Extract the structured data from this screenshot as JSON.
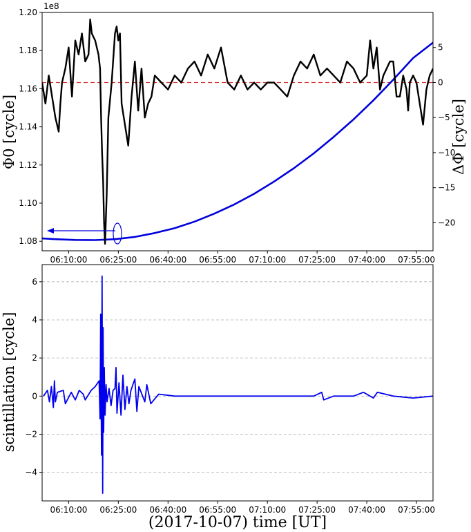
{
  "chart_data": [
    {
      "type": "line",
      "x_unit": "UT",
      "x_tick_labels": [
        "06:10:00",
        "06:25:00",
        "06:40:00",
        "06:55:00",
        "07:10:00",
        "07:25:00",
        "07:40:00",
        "07:55:00"
      ],
      "x_tick_hours": [
        6.1667,
        6.4167,
        6.6667,
        6.9167,
        7.1667,
        7.4167,
        7.6667,
        7.9167
      ],
      "xlim_hours": [
        6.0333,
        8.0
      ],
      "left_axis": {
        "label": "Φ0 [cycle]",
        "multiplier": "1e8",
        "ylim": [
          1.075,
          1.2
        ],
        "tick_values": [
          1.08,
          1.1,
          1.12,
          1.14,
          1.16,
          1.18,
          1.2
        ],
        "tick_labels": [
          "1.08",
          "1.10",
          "1.12",
          "1.14",
          "1.16",
          "1.18",
          "1.20"
        ]
      },
      "right_axis": {
        "label": "ΔΦ [cycle]",
        "ylim": [
          -24,
          10
        ],
        "tick_values": [
          -20,
          -15,
          -10,
          -5,
          0,
          5
        ],
        "tick_labels": [
          "−20",
          "−15",
          "−10",
          "−5",
          "0",
          "5"
        ]
      },
      "series": [
        {
          "axis": "left",
          "color": "#0000dd",
          "x": [
            6.0333,
            6.1,
            6.2,
            6.3,
            6.4,
            6.5,
            6.6,
            6.7,
            6.8,
            6.9,
            7.0,
            7.1,
            7.2,
            7.3,
            7.4,
            7.5,
            7.6,
            7.7,
            7.8,
            7.9,
            8.0
          ],
          "y": [
            1.0815,
            1.0811,
            1.0807,
            1.0806,
            1.0811,
            1.0823,
            1.0843,
            1.0869,
            1.0903,
            1.0945,
            1.0993,
            1.1049,
            1.1113,
            1.1183,
            1.1261,
            1.1347,
            1.1439,
            1.1539,
            1.1647,
            1.1761,
            1.1842
          ]
        },
        {
          "axis": "right",
          "color": "#000000",
          "x": [
            6.0333,
            6.05,
            6.0667,
            6.0833,
            6.1,
            6.1167,
            6.125,
            6.1333,
            6.15,
            6.1667,
            6.1833,
            6.2,
            6.2167,
            6.2333,
            6.25,
            6.2667,
            6.275,
            6.2833,
            6.3,
            6.3167,
            6.325,
            6.33,
            6.335,
            6.34,
            6.345,
            6.35,
            6.3583,
            6.3667,
            6.3833,
            6.4,
            6.4083,
            6.4167,
            6.425,
            6.4333,
            6.45,
            6.4667,
            6.4833,
            6.5,
            6.5167,
            6.5333,
            6.55,
            6.5667,
            6.5833,
            6.6,
            6.6333,
            6.6667,
            6.7,
            6.7333,
            6.7667,
            6.8,
            6.8333,
            6.8667,
            6.9,
            6.9333,
            6.9667,
            7.0,
            7.0333,
            7.0667,
            7.1,
            7.1333,
            7.1667,
            7.2,
            7.2333,
            7.2667,
            7.3,
            7.3333,
            7.3667,
            7.4,
            7.4333,
            7.4667,
            7.5,
            7.5333,
            7.5667,
            7.6,
            7.6333,
            7.6667,
            7.6833,
            7.7,
            7.7167,
            7.7333,
            7.75,
            7.7667,
            7.7833,
            7.8,
            7.8167,
            7.8333,
            7.85,
            7.8667,
            7.875,
            7.8833,
            7.9,
            7.9167,
            7.9333,
            7.95,
            7.9667,
            7.9833,
            8.0
          ],
          "y": [
            0,
            -3,
            1,
            -2,
            -5,
            -7,
            -3,
            0,
            2,
            5,
            -2,
            6,
            4,
            7,
            3,
            4,
            9,
            7,
            6,
            4,
            2,
            -5,
            -10,
            -14,
            -20,
            -23,
            -16,
            -5,
            0,
            7,
            8,
            6,
            7,
            -3,
            -6,
            -9,
            -2,
            3,
            -4,
            2,
            -5,
            -3,
            -2,
            1,
            0,
            -1,
            1,
            0,
            2,
            3,
            1,
            4,
            2,
            5,
            0,
            -1,
            1,
            -1,
            0,
            -1,
            0,
            0,
            -1,
            -2,
            1,
            3,
            2,
            4,
            1,
            2,
            1,
            0,
            3,
            2,
            0,
            1,
            6,
            2,
            5,
            -1,
            1,
            2,
            3,
            3,
            -2,
            -2,
            1,
            -1,
            -4,
            0,
            1,
            0,
            -3,
            -6,
            -1,
            1,
            2
          ]
        }
      ],
      "zero_line_color": "#d62728"
    },
    {
      "type": "line",
      "x_unit": "UT",
      "x_tick_labels": [
        "06:10:00",
        "06:25:00",
        "06:40:00",
        "06:55:00",
        "07:10:00",
        "07:25:00",
        "07:40:00",
        "07:55:00"
      ],
      "x_tick_hours": [
        6.1667,
        6.4167,
        6.6667,
        6.9167,
        7.1667,
        7.4167,
        7.6667,
        7.9167
      ],
      "xlim_hours": [
        6.0333,
        8.0
      ],
      "xlabel": "(2017-10-07) time [UT]",
      "ylabel": "scintillation [cycle]",
      "ylim": [
        -5.5,
        6.9
      ],
      "tick_values": [
        -4,
        -2,
        0,
        2,
        4,
        6
      ],
      "tick_labels": [
        "−4",
        "−2",
        "0",
        "2",
        "4",
        "6"
      ],
      "grid": "horizontal dashed",
      "series": [
        {
          "color": "#0000ee",
          "x": [
            6.04,
            6.06,
            6.07,
            6.08,
            6.09,
            6.095,
            6.1,
            6.11,
            6.14,
            6.15,
            6.18,
            6.2,
            6.22,
            6.24,
            6.25,
            6.28,
            6.3,
            6.32,
            6.325,
            6.328,
            6.332,
            6.335,
            6.338,
            6.34,
            6.343,
            6.346,
            6.35,
            6.355,
            6.36,
            6.37,
            6.38,
            6.39,
            6.4,
            6.405,
            6.41,
            6.42,
            6.43,
            6.44,
            6.45,
            6.46,
            6.47,
            6.48,
            6.5,
            6.51,
            6.52,
            6.55,
            6.56,
            6.58,
            6.62,
            6.7,
            6.8,
            6.9,
            7.0,
            7.1,
            7.2,
            7.3,
            7.4,
            7.44,
            7.45,
            7.5,
            7.6,
            7.65,
            7.7,
            7.72,
            7.8,
            7.9,
            8.0
          ],
          "y": [
            0,
            0.3,
            -0.3,
            0.5,
            -0.6,
            0.8,
            -0.3,
            0.2,
            0.3,
            -0.4,
            0.2,
            -0.2,
            0.3,
            0.1,
            -0.2,
            0.3,
            0.5,
            0.8,
            -1.2,
            4.3,
            -3.1,
            6.3,
            -5.1,
            3.6,
            -1.9,
            1.5,
            -1.0,
            0.6,
            -0.3,
            0.4,
            -0.5,
            0.3,
            0.4,
            1.5,
            -0.9,
            0.7,
            -1.0,
            1.1,
            -0.7,
            0.5,
            -0.4,
            0.3,
            0.9,
            -0.8,
            0.5,
            -0.3,
            0.6,
            -0.4,
            0.1,
            0,
            0,
            0,
            0,
            0,
            0,
            0,
            0,
            0.2,
            -0.2,
            0,
            0,
            0.2,
            -0.1,
            0.2,
            0,
            -0.1,
            0
          ]
        }
      ]
    }
  ]
}
